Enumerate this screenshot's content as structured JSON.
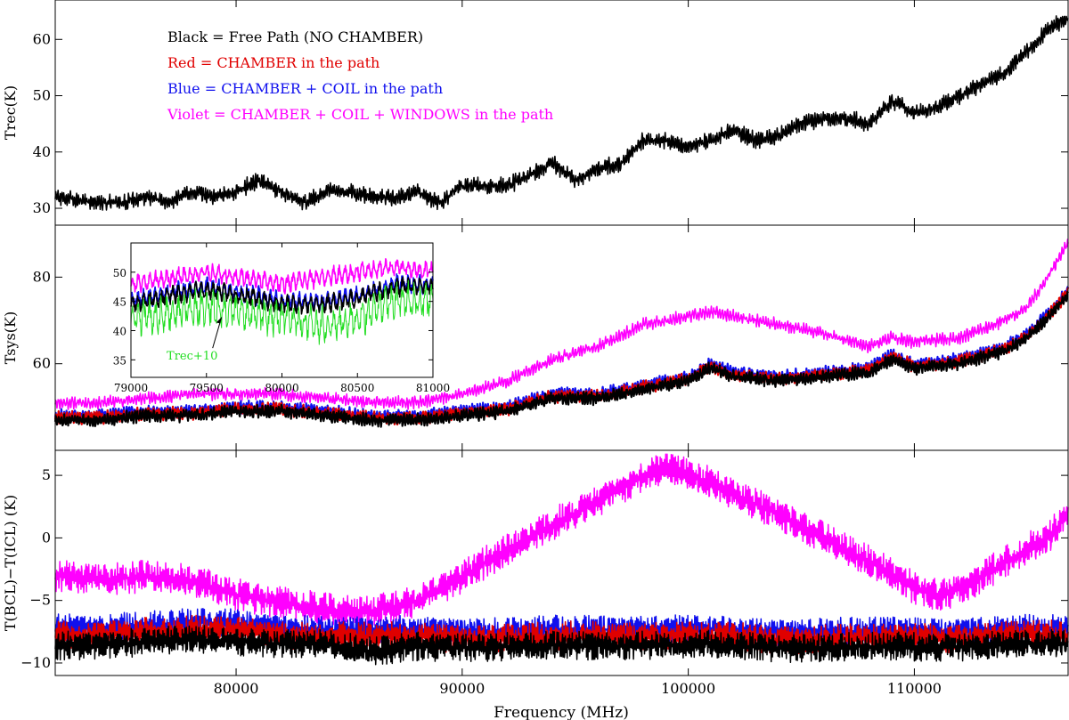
{
  "figure": {
    "xlabel": "Frequency (MHz)"
  },
  "colors": {
    "black": "#000000",
    "red": "#e00000",
    "blue": "#1010ee",
    "violet": "#ff00ff",
    "green": "#22dd22",
    "axis": "#000000"
  },
  "chart_data": [
    {
      "type": "line",
      "panel": "top",
      "ylabel": "Trec(K)",
      "xlim": [
        72000,
        116800
      ],
      "ylim": [
        27,
        67
      ],
      "yticks": [
        30,
        40,
        50,
        60
      ],
      "legend": [
        {
          "text": "Black = Free Path (NO CHAMBER)",
          "color": "#000000"
        },
        {
          "text": "Red = CHAMBER in the path",
          "color": "#e00000"
        },
        {
          "text": "Blue = CHAMBER + COIL in the path",
          "color": "#1010ee"
        },
        {
          "text": "Violet = CHAMBER + COIL + WINDOWS in the path",
          "color": "#ff00ff"
        }
      ],
      "series": [
        {
          "color": "#000000",
          "x": [
            72000,
            73000,
            74000,
            75000,
            76000,
            77000,
            78000,
            79000,
            80000,
            81000,
            82000,
            83000,
            84000,
            85000,
            86000,
            87000,
            88000,
            89000,
            90000,
            91000,
            92000,
            93000,
            94000,
            95000,
            96000,
            97000,
            98000,
            99000,
            100000,
            101000,
            102000,
            103000,
            104000,
            105000,
            106000,
            107000,
            108000,
            109000,
            110000,
            111000,
            112000,
            113000,
            114000,
            115000,
            116000,
            116800
          ],
          "y": [
            32,
            31.5,
            31,
            31,
            32,
            31,
            33,
            32,
            33,
            35,
            33,
            31,
            33,
            33,
            32,
            32,
            33,
            31,
            34,
            34,
            34,
            36,
            38,
            35,
            37,
            38,
            42,
            42,
            41,
            42,
            44,
            42,
            43,
            45,
            46,
            46,
            45,
            49,
            47,
            48,
            50,
            52,
            54,
            58,
            62,
            64
          ]
        }
      ]
    },
    {
      "type": "line",
      "panel": "middle",
      "ylabel": "Tsys(K)",
      "xlim": [
        72000,
        116800
      ],
      "ylim": [
        40,
        92
      ],
      "yticks": [
        60,
        80
      ],
      "series": [
        {
          "color": "#ff00ff",
          "x": [
            72000,
            74000,
            76000,
            78000,
            80000,
            82000,
            84000,
            86000,
            88000,
            90000,
            92000,
            94000,
            96000,
            98000,
            100000,
            101000,
            102000,
            104000,
            106000,
            108000,
            109000,
            110000,
            112000,
            114000,
            115000,
            116000,
            116800
          ],
          "y": [
            51,
            51,
            52,
            53,
            53,
            53,
            52,
            51,
            51,
            53,
            56,
            61,
            64,
            69,
            71,
            72,
            71,
            69,
            67,
            64,
            66,
            65,
            66,
            70,
            73,
            81,
            88
          ]
        },
        {
          "color": "#1010ee",
          "x": [
            72000,
            74000,
            76000,
            78000,
            80000,
            82000,
            84000,
            86000,
            88000,
            90000,
            92000,
            94000,
            96000,
            98000,
            100000,
            101000,
            102000,
            104000,
            106000,
            108000,
            109000,
            110000,
            112000,
            114000,
            115000,
            116000,
            116800
          ],
          "y": [
            48,
            48,
            49,
            49,
            50,
            50,
            49,
            48,
            48,
            49,
            50,
            53,
            53,
            55,
            57,
            60,
            58,
            57,
            58,
            59,
            62,
            60,
            61,
            64,
            67,
            72,
            77
          ]
        },
        {
          "color": "#e00000",
          "x": [
            72000,
            74000,
            76000,
            78000,
            80000,
            82000,
            84000,
            86000,
            88000,
            90000,
            92000,
            94000,
            96000,
            98000,
            100000,
            101000,
            102000,
            104000,
            106000,
            108000,
            109000,
            110000,
            112000,
            114000,
            115000,
            116000,
            116800
          ],
          "y": [
            47.5,
            47.5,
            48.5,
            48.5,
            49.5,
            49.5,
            48.5,
            47.5,
            47.5,
            48.5,
            49.5,
            52.5,
            52.5,
            54.5,
            56.5,
            59.5,
            57.5,
            56.5,
            57.5,
            58.5,
            61.5,
            59.5,
            60.5,
            63.5,
            66.5,
            71.5,
            76.5
          ]
        },
        {
          "color": "#000000",
          "x": [
            72000,
            74000,
            76000,
            78000,
            80000,
            82000,
            84000,
            86000,
            88000,
            90000,
            92000,
            94000,
            96000,
            98000,
            100000,
            101000,
            102000,
            104000,
            106000,
            108000,
            109000,
            110000,
            112000,
            114000,
            115000,
            116000,
            116800
          ],
          "y": [
            47,
            47,
            48,
            48,
            49,
            49,
            48,
            47,
            47,
            48,
            49,
            52,
            52,
            54,
            56,
            59,
            57,
            56,
            57,
            58,
            61,
            59,
            60,
            63,
            66,
            71,
            76
          ]
        }
      ]
    },
    {
      "type": "line",
      "panel": "inset",
      "xlim": [
        79000,
        81000
      ],
      "ylim": [
        32,
        55
      ],
      "xticks": [
        79000,
        79500,
        80000,
        80500,
        81000
      ],
      "yticks": [
        35,
        40,
        45,
        50
      ],
      "annotation": "Trec+10",
      "series": [
        {
          "color": "#ff00ff",
          "x": [
            79000,
            79250,
            79500,
            79750,
            80000,
            80250,
            80500,
            80750,
            81000
          ],
          "y": [
            48,
            49,
            50,
            49,
            48,
            49,
            50,
            51,
            50
          ]
        },
        {
          "color": "#1010ee",
          "x": [
            79000,
            79250,
            79500,
            79750,
            80000,
            80250,
            80500,
            80750,
            81000
          ],
          "y": [
            45,
            46.5,
            47.5,
            46.5,
            45,
            45,
            46,
            48,
            48
          ]
        },
        {
          "color": "#000000",
          "x": [
            79000,
            79250,
            79500,
            79750,
            80000,
            80250,
            80500,
            80750,
            81000
          ],
          "y": [
            44.5,
            46,
            47,
            46,
            44.5,
            44.5,
            45.5,
            47.5,
            47.5
          ]
        },
        {
          "color": "#22dd22",
          "x": [
            79000,
            79250,
            79500,
            79750,
            80000,
            80250,
            80500,
            80750,
            81000
          ],
          "y": [
            42,
            43,
            44,
            43,
            42,
            41,
            42,
            45,
            45
          ]
        }
      ]
    },
    {
      "type": "line",
      "panel": "bottom",
      "ylabel": "T(BCL)−T(ICL)  (K)",
      "xlim": [
        72000,
        116800
      ],
      "ylim": [
        -11,
        7
      ],
      "yticks": [
        -10,
        -5,
        0,
        5
      ],
      "xticks": [
        80000,
        90000,
        100000,
        110000
      ],
      "series": [
        {
          "color": "#ff00ff",
          "x": [
            72000,
            74000,
            76000,
            78000,
            80000,
            82000,
            84000,
            86000,
            88000,
            90000,
            92000,
            94000,
            96000,
            98000,
            99000,
            100000,
            102000,
            104000,
            106000,
            108000,
            110000,
            111000,
            112000,
            114000,
            116000,
            116800
          ],
          "y": [
            -3,
            -3.2,
            -3.1,
            -3.5,
            -4.5,
            -5,
            -5.8,
            -6,
            -5,
            -3,
            -1,
            1,
            3,
            5,
            5.6,
            5,
            3.5,
            2,
            0,
            -2,
            -4,
            -4.5,
            -4,
            -2,
            0,
            2
          ]
        },
        {
          "color": "#1010ee",
          "x": [
            72000,
            76000,
            80000,
            84000,
            88000,
            92000,
            96000,
            100000,
            104000,
            108000,
            112000,
            116800
          ],
          "y": [
            -7.2,
            -7,
            -6.8,
            -7.5,
            -7.3,
            -7.6,
            -7.2,
            -7.4,
            -7.5,
            -7.6,
            -7.4,
            -7.3
          ]
        },
        {
          "color": "#e00000",
          "x": [
            72000,
            76000,
            80000,
            84000,
            88000,
            92000,
            96000,
            100000,
            104000,
            108000,
            112000,
            116800
          ],
          "y": [
            -7.7,
            -7.5,
            -7.4,
            -8,
            -7.8,
            -8.1,
            -7.7,
            -7.9,
            -8,
            -8.1,
            -7.9,
            -7.8
          ]
        },
        {
          "color": "#000000",
          "x": [
            72000,
            76000,
            80000,
            84000,
            86000,
            88000,
            92000,
            96000,
            100000,
            104000,
            108000,
            112000,
            116800
          ],
          "y": [
            -8.6,
            -8.3,
            -8.2,
            -8.5,
            -9.2,
            -8.6,
            -8.8,
            -8.5,
            -8.6,
            -8.7,
            -8.8,
            -8.6,
            -8.5
          ]
        }
      ]
    }
  ]
}
